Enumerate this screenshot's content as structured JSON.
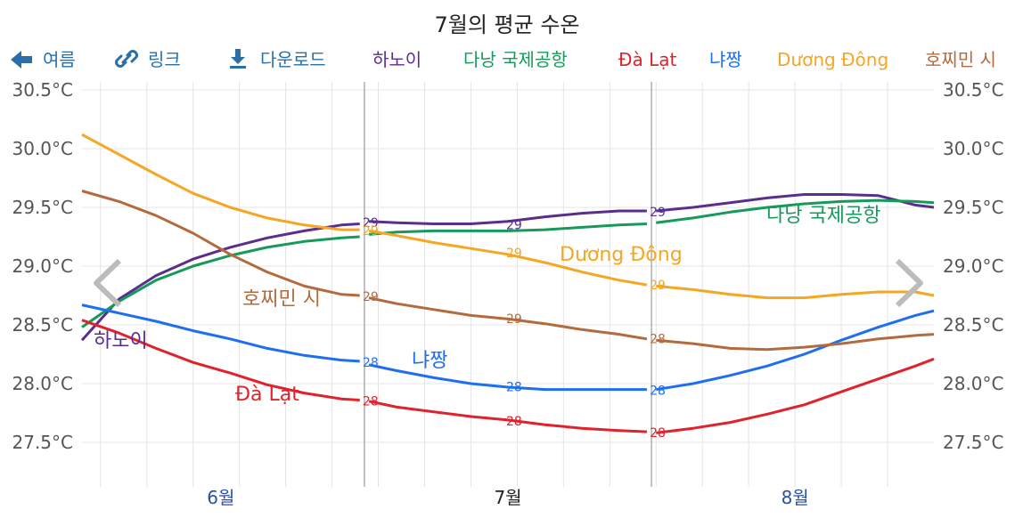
{
  "toolbar": {
    "back_label": "여름",
    "link_label": "링크",
    "download_label": "다운로드",
    "back_icon": "arrow-left-icon",
    "link_icon": "link-icon",
    "download_icon": "download-icon",
    "button_color": "#2a6fa8"
  },
  "chart_data": {
    "type": "line",
    "title": "7월의 평균 수온",
    "legend_position": "top",
    "grid": true,
    "ylim": [
      27.3,
      30.6
    ],
    "y_ticks": [
      27.5,
      28.0,
      28.5,
      29.0,
      29.5,
      30.0,
      30.5
    ],
    "y_tick_labels": [
      "27.5°C",
      "28.0°C",
      "28.5°C",
      "29.0°C",
      "29.5°C",
      "30.0°C",
      "30.5°C"
    ],
    "x_months": [
      {
        "label": "6월",
        "x": 15,
        "color": "#2a4fa8",
        "bold": false
      },
      {
        "label": "7월",
        "x": 46,
        "color": "#222222",
        "bold": false
      },
      {
        "label": "8월",
        "x": 77,
        "color": "#2a4fa8",
        "bold": false
      }
    ],
    "xlim": [
      0,
      92
    ],
    "week_boundaries": [
      30.5,
      61.5
    ],
    "series": [
      {
        "name": "하노이",
        "color": "#5b2d8e",
        "inline_label": "하노이",
        "x": [
          0,
          4,
          8,
          12,
          16,
          20,
          24,
          28,
          30,
          31,
          34,
          38,
          42,
          46,
          50,
          54,
          58,
          61,
          62,
          66,
          70,
          74,
          78,
          82,
          86,
          88,
          90,
          92
        ],
        "y": [
          28.37,
          28.72,
          28.92,
          29.06,
          29.16,
          29.24,
          29.3,
          29.35,
          29.36,
          29.38,
          29.37,
          29.36,
          29.36,
          29.38,
          29.42,
          29.45,
          29.47,
          29.47,
          29.47,
          29.5,
          29.54,
          29.58,
          29.61,
          29.61,
          29.6,
          29.56,
          29.52,
          29.5
        ],
        "value_labels": [
          {
            "x": 30.5,
            "y": 29.38,
            "text": "29"
          },
          {
            "x": 46,
            "y": 29.36,
            "text": "29"
          },
          {
            "x": 61.5,
            "y": 29.47,
            "text": "29"
          }
        ]
      },
      {
        "name": "다낭 국제공항",
        "color": "#169a5a",
        "inline_label": "다낭 국제공항",
        "x": [
          0,
          4,
          8,
          12,
          16,
          20,
          24,
          28,
          30,
          31,
          34,
          38,
          42,
          46,
          50,
          54,
          58,
          61,
          62,
          66,
          70,
          74,
          78,
          82,
          86,
          90,
          92
        ],
        "y": [
          28.48,
          28.7,
          28.88,
          29.0,
          29.09,
          29.16,
          29.21,
          29.24,
          29.25,
          29.27,
          29.29,
          29.3,
          29.3,
          29.3,
          29.31,
          29.33,
          29.35,
          29.36,
          29.37,
          29.41,
          29.46,
          29.5,
          29.53,
          29.55,
          29.56,
          29.55,
          29.54
        ],
        "value_labels": []
      },
      {
        "name": "Đà Lạt",
        "color": "#e0222c",
        "inline_label": "Đà Lạt",
        "x": [
          0,
          4,
          8,
          12,
          16,
          20,
          24,
          28,
          30,
          31,
          34,
          38,
          42,
          46,
          50,
          54,
          58,
          61,
          62,
          66,
          70,
          74,
          78,
          82,
          86,
          90,
          92
        ],
        "y": [
          28.54,
          28.43,
          28.3,
          28.18,
          28.09,
          27.99,
          27.92,
          27.87,
          27.86,
          27.85,
          27.8,
          27.76,
          27.72,
          27.69,
          27.65,
          27.62,
          27.6,
          27.59,
          27.58,
          27.62,
          27.67,
          27.74,
          27.82,
          27.93,
          28.04,
          28.15,
          28.21
        ],
        "value_labels": [
          {
            "x": 30.5,
            "y": 27.86,
            "text": "28"
          },
          {
            "x": 46,
            "y": 27.69,
            "text": "28"
          },
          {
            "x": 61.5,
            "y": 27.59,
            "text": "28"
          }
        ]
      },
      {
        "name": "냐짱",
        "color": "#1e6ff0",
        "inline_label": "냐짱",
        "x": [
          0,
          4,
          8,
          12,
          16,
          20,
          24,
          28,
          30,
          31,
          34,
          38,
          42,
          46,
          50,
          54,
          58,
          61,
          62,
          66,
          70,
          74,
          78,
          82,
          86,
          90,
          92
        ],
        "y": [
          28.67,
          28.6,
          28.53,
          28.45,
          28.38,
          28.3,
          28.24,
          28.2,
          28.19,
          28.16,
          28.11,
          28.05,
          28.0,
          27.97,
          27.95,
          27.95,
          27.95,
          27.95,
          27.95,
          28.0,
          28.07,
          28.15,
          28.25,
          28.37,
          28.48,
          28.58,
          28.62
        ],
        "value_labels": [
          {
            "x": 30.5,
            "y": 28.19,
            "text": "28"
          },
          {
            "x": 46,
            "y": 27.98,
            "text": "28"
          },
          {
            "x": 61.5,
            "y": 27.95,
            "text": "28"
          }
        ]
      },
      {
        "name": "Dương Đông",
        "color": "#f5a623",
        "inline_label": "Dương Đông",
        "x": [
          0,
          4,
          8,
          12,
          16,
          20,
          24,
          28,
          30,
          31,
          34,
          38,
          42,
          46,
          50,
          54,
          58,
          61,
          62,
          66,
          70,
          74,
          78,
          82,
          86,
          90,
          92
        ],
        "y": [
          30.12,
          29.95,
          29.78,
          29.62,
          29.5,
          29.41,
          29.35,
          29.31,
          29.31,
          29.3,
          29.26,
          29.2,
          29.15,
          29.1,
          29.03,
          28.95,
          28.88,
          28.84,
          28.83,
          28.8,
          28.76,
          28.73,
          28.73,
          28.76,
          28.78,
          28.78,
          28.75
        ],
        "value_labels": [
          {
            "x": 30.5,
            "y": 29.31,
            "text": "29"
          },
          {
            "x": 46,
            "y": 29.12,
            "text": "29"
          },
          {
            "x": 61.5,
            "y": 28.85,
            "text": "29"
          }
        ]
      },
      {
        "name": "호찌민 시",
        "color": "#b36b3e",
        "inline_label": "호찌민 시",
        "x": [
          0,
          4,
          8,
          12,
          16,
          20,
          24,
          28,
          30,
          31,
          34,
          38,
          42,
          46,
          50,
          54,
          58,
          61,
          62,
          66,
          70,
          74,
          78,
          82,
          86,
          90,
          92
        ],
        "y": [
          29.64,
          29.55,
          29.43,
          29.28,
          29.1,
          28.95,
          28.83,
          28.76,
          28.75,
          28.73,
          28.68,
          28.63,
          28.58,
          28.55,
          28.51,
          28.46,
          28.42,
          28.38,
          28.37,
          28.34,
          28.3,
          28.29,
          28.31,
          28.34,
          28.38,
          28.41,
          28.42
        ],
        "value_labels": [
          {
            "x": 30.5,
            "y": 28.75,
            "text": "29"
          },
          {
            "x": 46,
            "y": 28.56,
            "text": "29"
          },
          {
            "x": 61.5,
            "y": 28.39,
            "text": "28"
          }
        ]
      }
    ]
  }
}
